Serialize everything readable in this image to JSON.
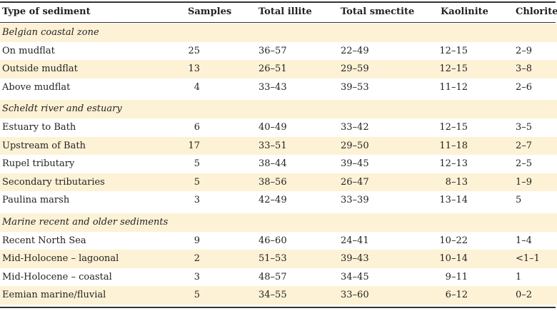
{
  "table": {
    "header": [
      "Type of sediment",
      "Samples",
      "Total illite",
      "Total smectite",
      "Kaolinite",
      "Chlorite"
    ],
    "rows": [
      {
        "section": "Belgian coastal zone"
      },
      [
        "On mudflat",
        "25",
        "36–57",
        "22–49",
        "12–15",
        "2–9"
      ],
      [
        "Outside mudflat",
        "13",
        "26–51",
        "29–59",
        "12–15",
        "3–8"
      ],
      [
        "Above mudflat",
        "4",
        "33–43",
        "39–53",
        "11–12",
        "2–6"
      ],
      {
        "section": "Scheldt river and estuary"
      },
      [
        "Estuary to Bath",
        "6",
        "40–49",
        "33–42",
        "12–15",
        "3–5"
      ],
      [
        "Upstream of Bath",
        "17",
        "33–51",
        "29–50",
        "11–18",
        "2–7"
      ],
      [
        "Rupel tributary",
        "5",
        "38–44",
        "39–45",
        "12–13",
        "2–5"
      ],
      [
        "Secondary tributaries",
        "5",
        "38–56",
        "26–47",
        "8–13",
        "1–9"
      ],
      [
        "Paulina marsh",
        "3",
        "42–49",
        "33–39",
        "13–14",
        "5"
      ],
      {
        "section": "Marine recent and older sediments"
      },
      [
        "Recent North Sea",
        "9",
        "46–60",
        "24–41",
        "10–22",
        "1–4"
      ],
      [
        "Mid-Holocene – lagoonal",
        "2",
        "51–53",
        "39–43",
        "10–14",
        "<1–1"
      ],
      [
        "Mid-Holocene – coastal",
        "3",
        "48–57",
        "34–45",
        "9–11",
        "1"
      ],
      [
        "Eemian marine/fluvial",
        "5",
        "34–55",
        "33–60",
        "6–12",
        "0–2"
      ]
    ]
  }
}
